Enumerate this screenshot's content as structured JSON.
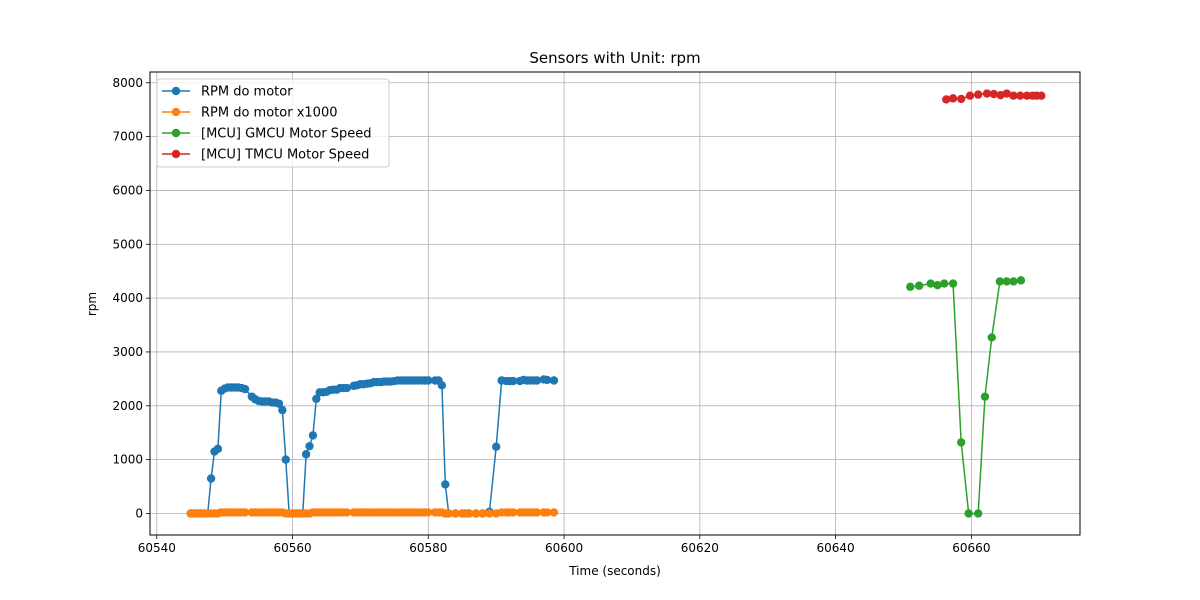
{
  "chart_data": {
    "type": "line",
    "title": "Sensors with Unit: rpm",
    "xlabel": "Time (seconds)",
    "ylabel": "rpm",
    "xlim": [
      60539,
      60676
    ],
    "ylim": [
      -400,
      8200
    ],
    "xticks": [
      60540,
      60560,
      60580,
      60600,
      60620,
      60640,
      60660
    ],
    "yticks": [
      0,
      1000,
      2000,
      3000,
      4000,
      5000,
      6000,
      7000,
      8000
    ],
    "grid": true,
    "legend_position": "top-left",
    "series": [
      {
        "name": "RPM do motor",
        "color": "#1f77b4",
        "points": [
          [
            60545,
            0
          ],
          [
            60545.5,
            0
          ],
          [
            60546,
            0
          ],
          [
            60546.5,
            0
          ],
          [
            60547,
            0
          ],
          [
            60547.5,
            0
          ],
          [
            60548,
            650
          ],
          [
            60548.5,
            1150
          ],
          [
            60549,
            1200
          ],
          [
            60549.5,
            2280
          ],
          [
            60550,
            2320
          ],
          [
            60550.5,
            2340
          ],
          [
            60551,
            2340
          ],
          [
            60551.5,
            2340
          ],
          [
            60552,
            2340
          ],
          [
            60552.5,
            2330
          ],
          [
            60553,
            2310
          ],
          [
            60554,
            2170
          ],
          [
            60554.5,
            2120
          ],
          [
            60555,
            2090
          ],
          [
            60555.5,
            2080
          ],
          [
            60556,
            2080
          ],
          [
            60556.5,
            2080
          ],
          [
            60557,
            2060
          ],
          [
            60557.5,
            2060
          ],
          [
            60558,
            2040
          ],
          [
            60558.5,
            1920
          ],
          [
            60559,
            1000
          ],
          [
            60559.5,
            0
          ],
          [
            60560,
            0
          ],
          [
            60560.5,
            0
          ],
          [
            60561,
            0
          ],
          [
            60561.5,
            0
          ],
          [
            60562,
            1100
          ],
          [
            60562.5,
            1250
          ],
          [
            60563,
            1450
          ],
          [
            60563.5,
            2130
          ],
          [
            60564,
            2250
          ],
          [
            60564.5,
            2250
          ],
          [
            60565,
            2260
          ],
          [
            60565.5,
            2290
          ],
          [
            60566,
            2300
          ],
          [
            60566.5,
            2300
          ],
          [
            60567,
            2330
          ],
          [
            60567.5,
            2330
          ],
          [
            60568,
            2330
          ],
          [
            60569,
            2370
          ],
          [
            60569.5,
            2380
          ],
          [
            60570,
            2400
          ],
          [
            60570.5,
            2400
          ],
          [
            60571,
            2410
          ],
          [
            60571.5,
            2420
          ],
          [
            60572,
            2440
          ],
          [
            60572.5,
            2440
          ],
          [
            60573,
            2440
          ],
          [
            60573.5,
            2450
          ],
          [
            60574,
            2450
          ],
          [
            60574.5,
            2450
          ],
          [
            60575,
            2460
          ],
          [
            60575.5,
            2470
          ],
          [
            60576,
            2470
          ],
          [
            60576.5,
            2470
          ],
          [
            60577,
            2470
          ],
          [
            60577.5,
            2470
          ],
          [
            60578,
            2470
          ],
          [
            60578.5,
            2470
          ],
          [
            60579,
            2470
          ],
          [
            60579.5,
            2470
          ],
          [
            60580,
            2470
          ],
          [
            60581,
            2470
          ],
          [
            60581.5,
            2470
          ],
          [
            60582,
            2380
          ],
          [
            60582.5,
            540
          ],
          [
            60583,
            0
          ],
          [
            60584,
            0
          ],
          [
            60585,
            0
          ],
          [
            60585.5,
            0
          ],
          [
            60586,
            0
          ],
          [
            60587,
            0
          ],
          [
            60588,
            0
          ],
          [
            60589,
            30
          ],
          [
            60590,
            1240
          ],
          [
            60590.8,
            2470
          ],
          [
            60591.5,
            2460
          ],
          [
            60592,
            2460
          ],
          [
            60592.5,
            2460
          ],
          [
            60593.5,
            2460
          ],
          [
            60594,
            2480
          ],
          [
            60594.5,
            2470
          ],
          [
            60595,
            2470
          ],
          [
            60595.5,
            2470
          ],
          [
            60596,
            2470
          ],
          [
            60597,
            2490
          ],
          [
            60597.5,
            2480
          ],
          [
            60598.5,
            2470
          ]
        ]
      },
      {
        "name": "RPM do motor x1000",
        "color": "#ff7f0e",
        "points": [
          [
            60545,
            0
          ],
          [
            60545.5,
            0
          ],
          [
            60546,
            0
          ],
          [
            60546.5,
            0
          ],
          [
            60547,
            0
          ],
          [
            60547.5,
            0
          ],
          [
            60548,
            0
          ],
          [
            60548.5,
            0
          ],
          [
            60549,
            0
          ],
          [
            60549.5,
            20
          ],
          [
            60550,
            20
          ],
          [
            60550.5,
            20
          ],
          [
            60551,
            20
          ],
          [
            60551.5,
            20
          ],
          [
            60552,
            20
          ],
          [
            60552.5,
            20
          ],
          [
            60553,
            20
          ],
          [
            60554,
            20
          ],
          [
            60554.5,
            20
          ],
          [
            60555,
            20
          ],
          [
            60555.5,
            20
          ],
          [
            60556,
            20
          ],
          [
            60556.5,
            20
          ],
          [
            60557,
            20
          ],
          [
            60557.5,
            20
          ],
          [
            60558,
            20
          ],
          [
            60558.5,
            20
          ],
          [
            60559,
            0
          ],
          [
            60559.5,
            0
          ],
          [
            60560,
            0
          ],
          [
            60560.5,
            0
          ],
          [
            60561,
            0
          ],
          [
            60561.5,
            0
          ],
          [
            60562,
            0
          ],
          [
            60562.5,
            0
          ],
          [
            60563,
            20
          ],
          [
            60563.5,
            20
          ],
          [
            60564,
            20
          ],
          [
            60564.5,
            20
          ],
          [
            60565,
            20
          ],
          [
            60565.5,
            20
          ],
          [
            60566,
            20
          ],
          [
            60566.5,
            20
          ],
          [
            60567,
            20
          ],
          [
            60567.5,
            20
          ],
          [
            60568,
            20
          ],
          [
            60569,
            20
          ],
          [
            60569.5,
            20
          ],
          [
            60570,
            20
          ],
          [
            60570.5,
            20
          ],
          [
            60571,
            20
          ],
          [
            60571.5,
            20
          ],
          [
            60572,
            20
          ],
          [
            60572.5,
            20
          ],
          [
            60573,
            20
          ],
          [
            60573.5,
            20
          ],
          [
            60574,
            20
          ],
          [
            60574.5,
            20
          ],
          [
            60575,
            20
          ],
          [
            60575.5,
            20
          ],
          [
            60576,
            20
          ],
          [
            60576.5,
            20
          ],
          [
            60577,
            20
          ],
          [
            60577.5,
            20
          ],
          [
            60578,
            20
          ],
          [
            60578.5,
            20
          ],
          [
            60579,
            20
          ],
          [
            60579.5,
            20
          ],
          [
            60580,
            20
          ],
          [
            60581,
            20
          ],
          [
            60581.5,
            20
          ],
          [
            60582,
            20
          ],
          [
            60582.5,
            0
          ],
          [
            60583,
            0
          ],
          [
            60584,
            0
          ],
          [
            60585,
            0
          ],
          [
            60585.5,
            0
          ],
          [
            60586,
            0
          ],
          [
            60587,
            0
          ],
          [
            60588,
            0
          ],
          [
            60589,
            0
          ],
          [
            60590,
            0
          ],
          [
            60590.8,
            20
          ],
          [
            60591.5,
            20
          ],
          [
            60592,
            20
          ],
          [
            60592.5,
            20
          ],
          [
            60593.5,
            20
          ],
          [
            60594,
            20
          ],
          [
            60594.5,
            20
          ],
          [
            60595,
            20
          ],
          [
            60595.5,
            20
          ],
          [
            60596,
            20
          ],
          [
            60597,
            20
          ],
          [
            60597.5,
            20
          ],
          [
            60598.5,
            20
          ]
        ]
      },
      {
        "name": "[MCU] GMCU Motor Speed",
        "color": "#2ca02c",
        "points": [
          [
            60651,
            4210
          ],
          [
            60652.3,
            4230
          ],
          [
            60654,
            4270
          ],
          [
            60655,
            4240
          ],
          [
            60656,
            4270
          ],
          [
            60657.3,
            4270
          ],
          [
            60658.5,
            1320
          ],
          [
            60659.6,
            0
          ],
          [
            60661,
            0
          ],
          [
            60662,
            2170
          ],
          [
            60663,
            3270
          ],
          [
            60664.2,
            4310
          ],
          [
            60665.2,
            4310
          ],
          [
            60666.2,
            4310
          ],
          [
            60667.3,
            4330
          ]
        ]
      },
      {
        "name": "[MCU] TMCU Motor Speed",
        "color": "#d62728",
        "points": [
          [
            60656.3,
            7690
          ],
          [
            60657.3,
            7710
          ],
          [
            60658.5,
            7700
          ],
          [
            60659.8,
            7760
          ],
          [
            60661,
            7780
          ],
          [
            60662.3,
            7800
          ],
          [
            60663.3,
            7790
          ],
          [
            60664.3,
            7770
          ],
          [
            60665.2,
            7800
          ],
          [
            60666.2,
            7760
          ],
          [
            60667.2,
            7760
          ],
          [
            60668.2,
            7760
          ],
          [
            60669,
            7760
          ],
          [
            60669.6,
            7760
          ],
          [
            60670.3,
            7760
          ]
        ]
      }
    ]
  }
}
